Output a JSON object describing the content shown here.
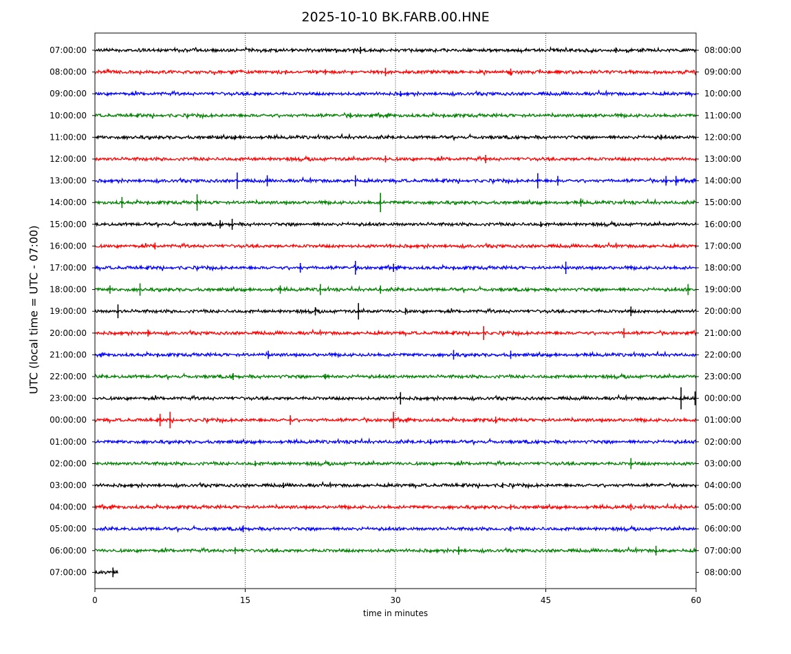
{
  "chart_data": {
    "type": "line",
    "title": "2025-10-10 BK.FARB.00.HNE",
    "xlabel": "time in minutes",
    "ylabel": "UTC (local time = UTC - 07:00)",
    "xlim": [
      0,
      60
    ],
    "x_ticks": [
      "0",
      "15",
      "30",
      "45",
      "60"
    ],
    "x_tick_values": [
      0,
      15,
      30,
      45,
      60
    ],
    "grid": "vertical dotted lines at 15, 30, 45",
    "colors": [
      "#000000",
      "#ff0000",
      "#0000ff",
      "#008000"
    ],
    "left_labels": [
      "07:00:00",
      "08:00:00",
      "09:00:00",
      "10:00:00",
      "11:00:00",
      "12:00:00",
      "13:00:00",
      "14:00:00",
      "15:00:00",
      "16:00:00",
      "17:00:00",
      "18:00:00",
      "19:00:00",
      "20:00:00",
      "21:00:00",
      "22:00:00",
      "23:00:00",
      "00:00:00",
      "01:00:00",
      "02:00:00",
      "03:00:00",
      "04:00:00",
      "05:00:00",
      "06:00:00",
      "07:00:00"
    ],
    "right_labels": [
      "08:00:00",
      "09:00:00",
      "10:00:00",
      "11:00:00",
      "12:00:00",
      "13:00:00",
      "14:00:00",
      "15:00:00",
      "16:00:00",
      "17:00:00",
      "18:00:00",
      "19:00:00",
      "20:00:00",
      "21:00:00",
      "22:00:00",
      "23:00:00",
      "00:00:00",
      "01:00:00",
      "02:00:00",
      "03:00:00",
      "04:00:00",
      "05:00:00",
      "06:00:00",
      "07:00:00",
      "08:00:00"
    ],
    "traces": [
      {
        "end_minute": 60,
        "spikes": [
          [
            26.5,
            5
          ],
          [
            52,
            4
          ]
        ]
      },
      {
        "end_minute": 60,
        "spikes": [
          [
            23,
            4
          ],
          [
            29,
            6
          ],
          [
            41.5,
            5
          ]
        ]
      },
      {
        "end_minute": 60,
        "spikes": [
          [
            30.5,
            4
          ],
          [
            16,
            3
          ]
        ]
      },
      {
        "end_minute": 60,
        "spikes": [
          [
            25.5,
            4
          ],
          [
            50,
            3
          ]
        ]
      },
      {
        "end_minute": 60,
        "spikes": [
          [
            14,
            3
          ],
          [
            56.5,
            4
          ]
        ]
      },
      {
        "end_minute": 60,
        "spikes": [
          [
            29,
            5
          ],
          [
            39,
            6
          ]
        ]
      },
      {
        "end_minute": 60,
        "spikes": [
          [
            14.2,
            12
          ],
          [
            17.2,
            8
          ],
          [
            26,
            8
          ],
          [
            44.2,
            11
          ],
          [
            46.2,
            7
          ],
          [
            57,
            7
          ],
          [
            58,
            7
          ]
        ]
      },
      {
        "end_minute": 60,
        "spikes": [
          [
            2.7,
            8
          ],
          [
            10.2,
            12
          ],
          [
            28.5,
            14
          ],
          [
            48.5,
            6
          ]
        ]
      },
      {
        "end_minute": 60,
        "spikes": [
          [
            12.5,
            6
          ],
          [
            13.7,
            8
          ],
          [
            44.5,
            4
          ]
        ]
      },
      {
        "end_minute": 60,
        "spikes": [
          [
            6,
            5
          ],
          [
            29.5,
            3
          ]
        ]
      },
      {
        "end_minute": 60,
        "spikes": [
          [
            20.5,
            7
          ],
          [
            26,
            10
          ],
          [
            29.8,
            6
          ],
          [
            47,
            9
          ]
        ]
      },
      {
        "end_minute": 60,
        "spikes": [
          [
            1.5,
            6
          ],
          [
            4.5,
            9
          ],
          [
            18.5,
            6
          ],
          [
            22.5,
            8
          ],
          [
            28.5,
            6
          ],
          [
            59.2,
            8
          ]
        ]
      },
      {
        "end_minute": 60,
        "spikes": [
          [
            2.3,
            10
          ],
          [
            22,
            6
          ],
          [
            26.3,
            12
          ],
          [
            31,
            5
          ],
          [
            53.5,
            7
          ]
        ]
      },
      {
        "end_minute": 60,
        "spikes": [
          [
            5.3,
            5
          ],
          [
            38.8,
            10
          ],
          [
            52.8,
            7
          ]
        ]
      },
      {
        "end_minute": 60,
        "spikes": [
          [
            17.3,
            6
          ],
          [
            35.8,
            7
          ],
          [
            41.5,
            6
          ]
        ]
      },
      {
        "end_minute": 60,
        "spikes": [
          [
            13.8,
            5
          ],
          [
            23,
            4
          ]
        ]
      },
      {
        "end_minute": 60,
        "spikes": [
          [
            30.5,
            9
          ],
          [
            58.5,
            16
          ],
          [
            59.9,
            10
          ]
        ]
      },
      {
        "end_minute": 60,
        "spikes": [
          [
            6.5,
            9
          ],
          [
            7.5,
            12
          ],
          [
            19.5,
            7
          ],
          [
            29.8,
            12
          ],
          [
            40,
            5
          ]
        ]
      },
      {
        "end_minute": 60,
        "spikes": [
          [
            33.5,
            4
          ],
          [
            26,
            3
          ]
        ]
      },
      {
        "end_minute": 60,
        "spikes": [
          [
            16,
            4
          ],
          [
            53.5,
            8
          ]
        ]
      },
      {
        "end_minute": 60,
        "spikes": [
          [
            18.8,
            4
          ],
          [
            40.7,
            4
          ]
        ]
      },
      {
        "end_minute": 60,
        "spikes": [
          [
            41.5,
            4
          ],
          [
            53.5,
            5
          ],
          [
            58.5,
            4
          ]
        ]
      },
      {
        "end_minute": 60,
        "spikes": [
          [
            14.8,
            5
          ],
          [
            41.5,
            4
          ]
        ]
      },
      {
        "end_minute": 60,
        "spikes": [
          [
            14,
            5
          ],
          [
            36.3,
            6
          ],
          [
            56,
            7
          ]
        ]
      },
      {
        "end_minute": 2.3,
        "spikes": [
          [
            1.8,
            7
          ]
        ]
      }
    ]
  }
}
